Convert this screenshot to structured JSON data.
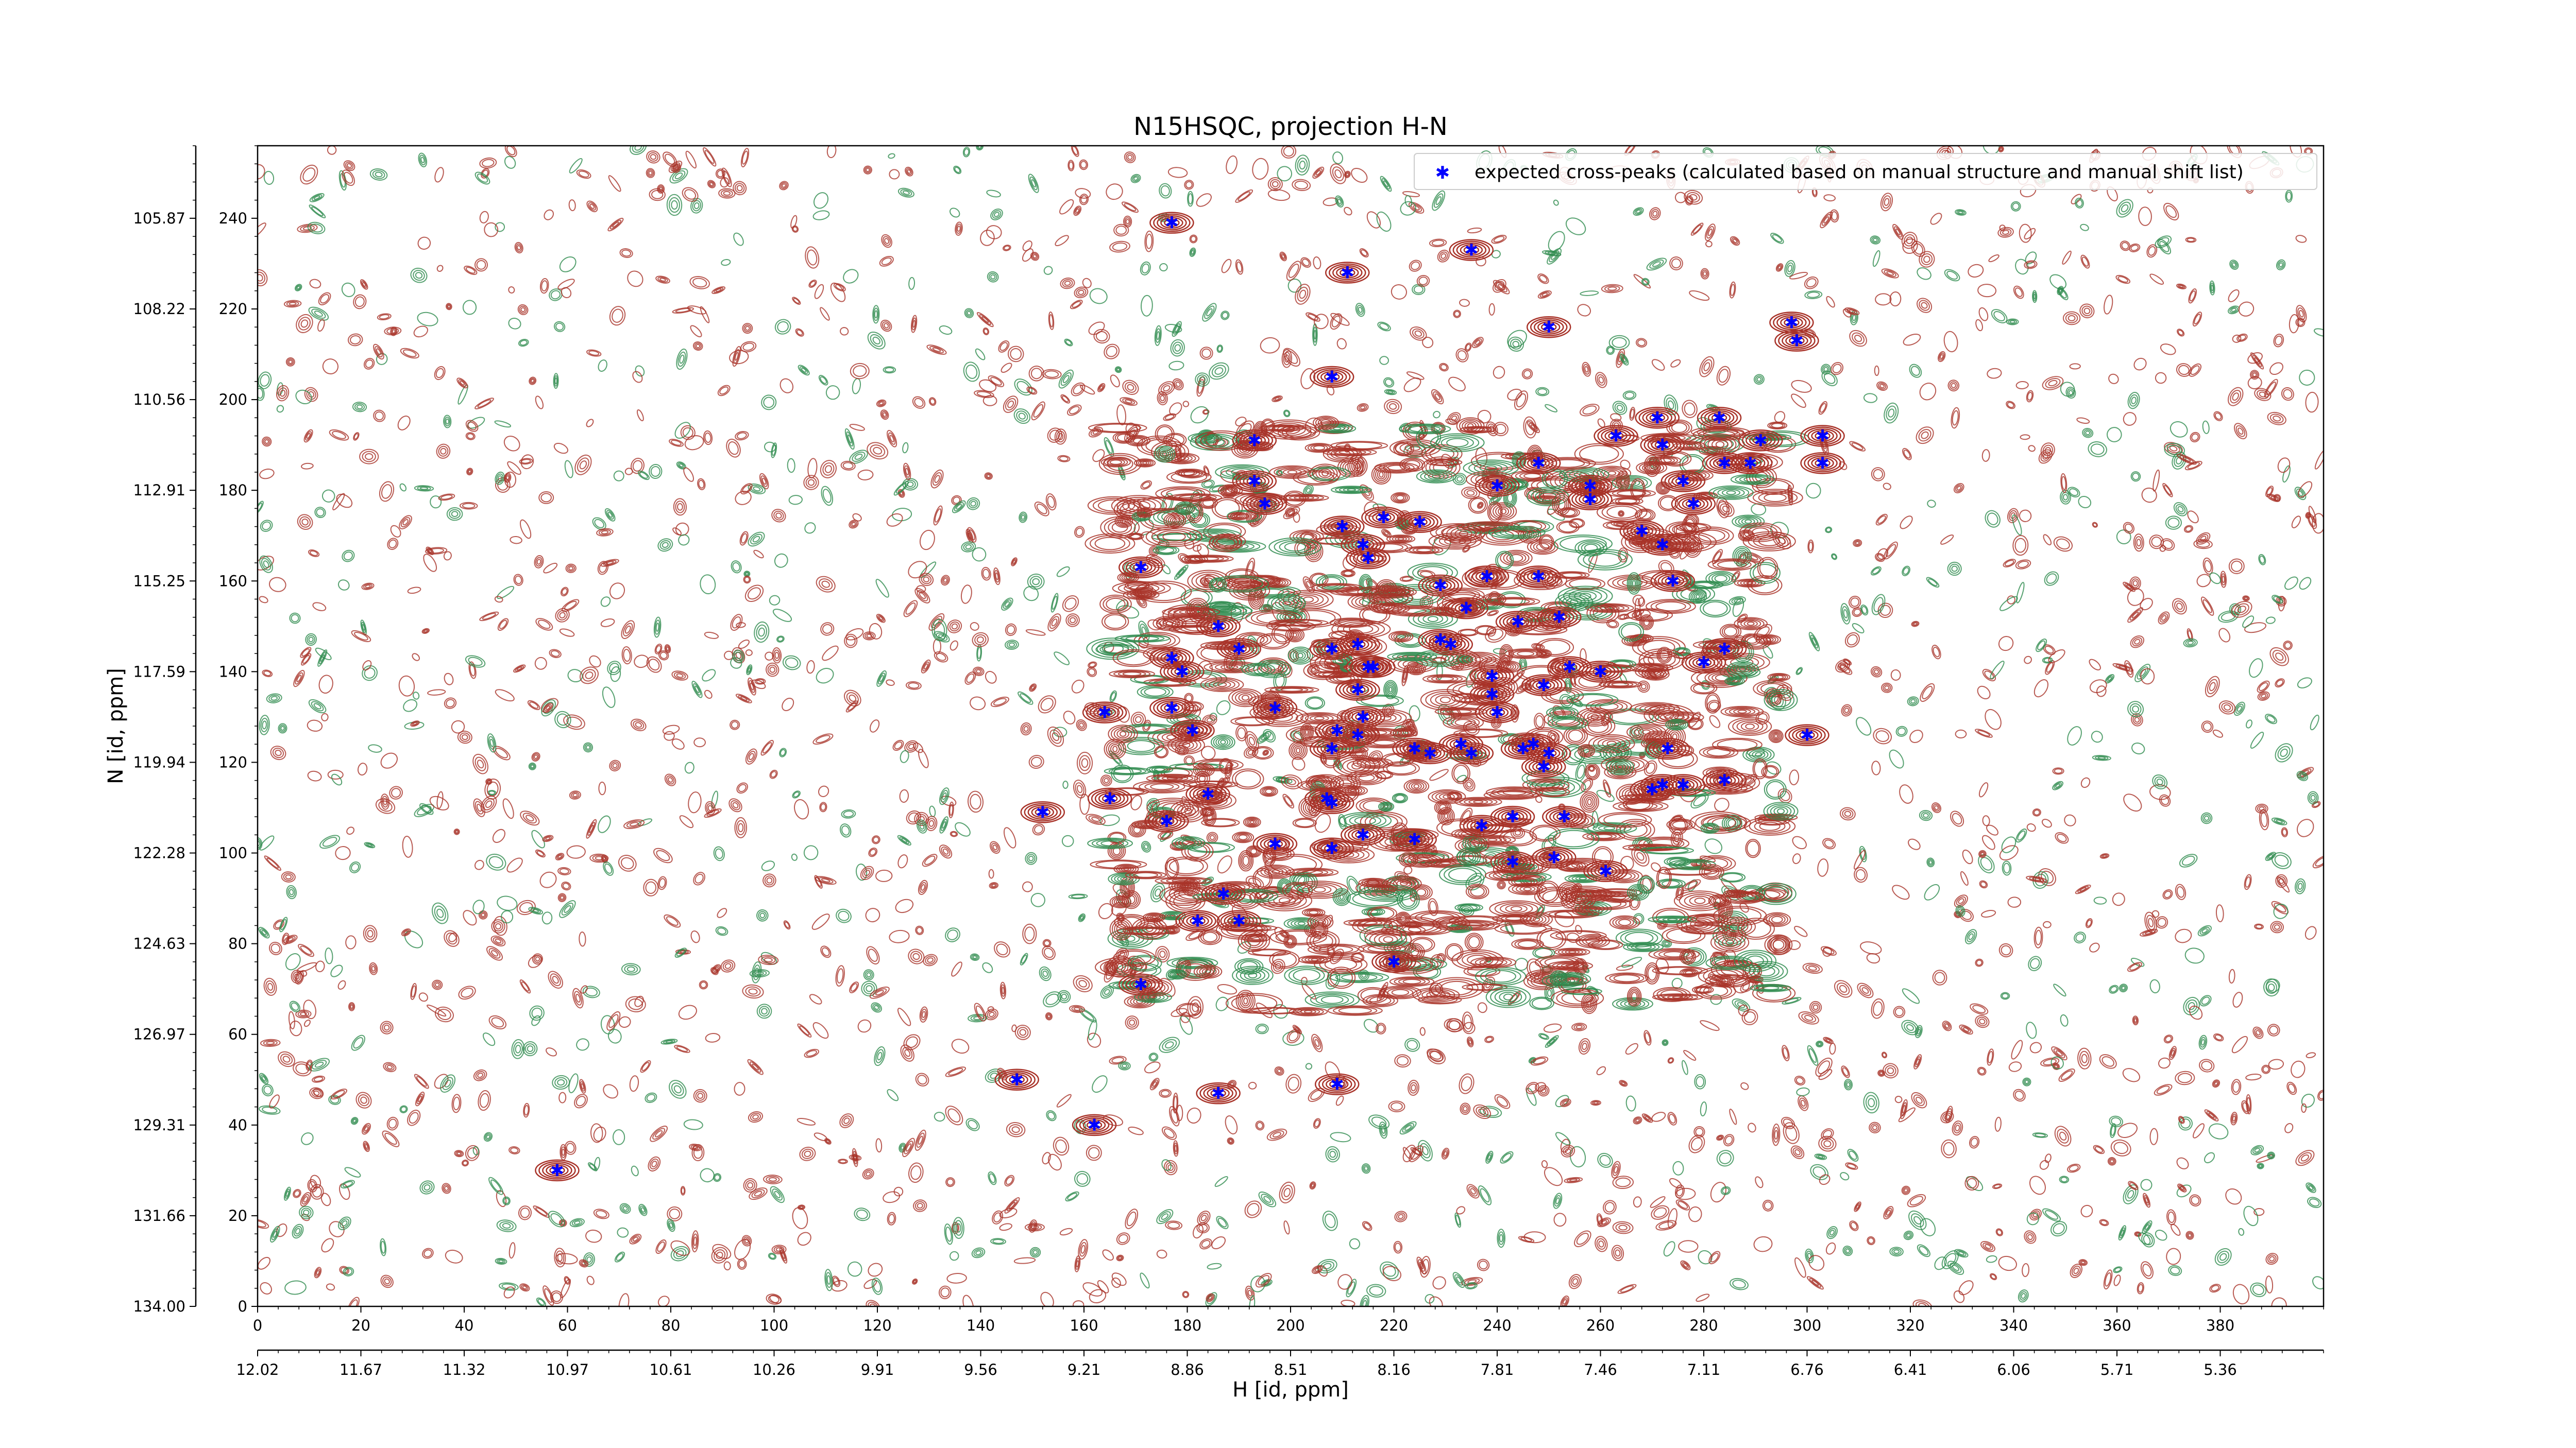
{
  "chart_data": {
    "type": "scatter",
    "title": "N15HSQC, projection H-N",
    "xlabel": "H [id, ppm]",
    "ylabel": "N [id, ppm]",
    "xlim": [
      0,
      400
    ],
    "ylim": [
      0,
      256
    ],
    "grid": false,
    "legend_position": "top-right",
    "x_ticks": [
      0,
      20,
      40,
      60,
      80,
      100,
      120,
      140,
      160,
      180,
      200,
      220,
      240,
      260,
      280,
      300,
      320,
      340,
      360,
      380
    ],
    "x_ppm_ticks": [
      "12.02",
      "11.67",
      "11.32",
      "10.97",
      "10.61",
      "10.26",
      "9.91",
      "9.56",
      "9.21",
      "8.86",
      "8.51",
      "8.16",
      "7.81",
      "7.46",
      "7.11",
      "6.76",
      "6.41",
      "6.06",
      "5.71",
      "5.36"
    ],
    "y_ticks": [
      0,
      20,
      40,
      60,
      80,
      100,
      120,
      140,
      160,
      180,
      200,
      220,
      240
    ],
    "y_ppm_ticks": [
      "134.00",
      "131.66",
      "129.31",
      "126.97",
      "124.63",
      "122.28",
      "119.94",
      "117.59",
      "115.25",
      "112.91",
      "110.56",
      "108.22",
      "105.87"
    ],
    "series": [
      {
        "name": "expected cross-peaks (calculated based on manual structure and manual shift list)",
        "x": [
          177,
          211,
          235,
          250,
          297,
          298,
          208,
          193,
          195,
          271,
          283,
          291,
          303,
          263,
          258,
          248,
          289,
          284,
          303,
          240,
          214,
          225,
          272,
          258,
          276,
          278,
          268,
          210,
          193,
          215,
          229,
          218,
          171,
          272,
          274,
          238,
          248,
          234,
          213,
          252,
          244,
          186,
          190,
          177,
          179,
          229,
          208,
          215,
          260,
          284,
          280,
          239,
          254,
          239,
          249,
          213,
          216,
          231,
          197,
          164,
          177,
          181,
          214,
          240,
          233,
          213,
          208,
          209,
          224,
          227,
          235,
          245,
          247,
          250,
          273,
          300,
          276,
          249,
          270,
          272,
          284,
          165,
          152,
          208,
          207,
          184,
          176,
          197,
          214,
          243,
          237,
          253,
          208,
          224,
          243,
          251,
          261,
          187,
          190,
          182,
          220,
          171,
          147,
          162,
          186,
          209,
          58
        ],
        "y": [
          239,
          228,
          233,
          216,
          217,
          213,
          205,
          191,
          177,
          196,
          196,
          191,
          192,
          192,
          178,
          186,
          186,
          186,
          186,
          181,
          168,
          173,
          190,
          181,
          182,
          177,
          171,
          172,
          182,
          165,
          159,
          174,
          163,
          168,
          160,
          161,
          161,
          154,
          146,
          152,
          151,
          150,
          145,
          143,
          140,
          147,
          145,
          141,
          140,
          145,
          142,
          139,
          141,
          135,
          137,
          136,
          141,
          146,
          132,
          131,
          132,
          127,
          130,
          131,
          124,
          126,
          123,
          127,
          123,
          122,
          122,
          123,
          124,
          122,
          123,
          126,
          115,
          119,
          114,
          115,
          116,
          112,
          109,
          111,
          112,
          113,
          107,
          102,
          104,
          108,
          106,
          108,
          101,
          103,
          98,
          99,
          96,
          91,
          85,
          85,
          76,
          71,
          50,
          40,
          47,
          49,
          30
        ],
        "color": "#0000ff",
        "marker": "star"
      }
    ],
    "contours": {
      "positive_color": "#a83228",
      "negative_color": "#2e8b4e"
    }
  }
}
